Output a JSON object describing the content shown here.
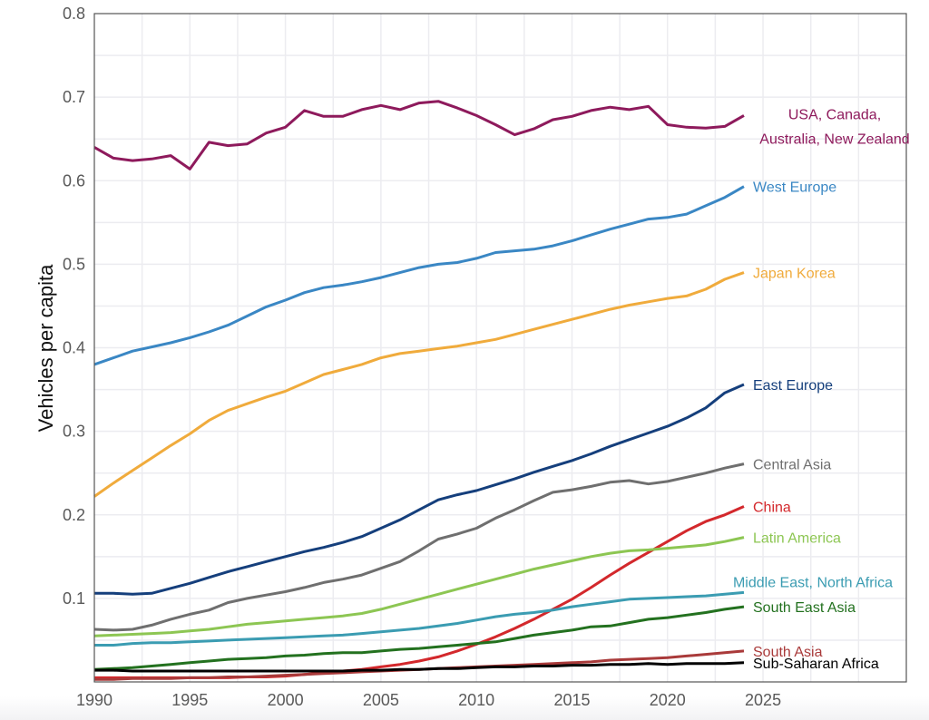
{
  "chart_data": {
    "type": "line",
    "title": "",
    "xlabel": "",
    "ylabel": "Vehicles per capita",
    "xlim": [
      1990,
      2032.5
    ],
    "ylim": [
      0,
      0.8
    ],
    "x_ticks": [
      "1990",
      "1995",
      "2000",
      "2005",
      "2010",
      "2015",
      "2020",
      "2025"
    ],
    "y_ticks": [
      "0.1",
      "0.2",
      "0.3",
      "0.4",
      "0.5",
      "0.6",
      "0.7",
      "0.8"
    ],
    "grid": true,
    "legend": "direct labels at right end of lines",
    "x": [
      1990,
      1991,
      1992,
      1993,
      1994,
      1995,
      1996,
      1997,
      1998,
      1999,
      2000,
      2001,
      2002,
      2003,
      2004,
      2005,
      2006,
      2007,
      2008,
      2009,
      2010,
      2011,
      2012,
      2013,
      2014,
      2015,
      2016,
      2017,
      2018,
      2019,
      2020,
      2021,
      2022,
      2023,
      2024
    ],
    "series": [
      {
        "name": "USA, Canada, Australia, New Zealand",
        "label_lines": [
          "USA, Canada,",
          "Australia, New Zealand"
        ],
        "color": "#8e1a5c",
        "values": [
          0.64,
          0.627,
          0.624,
          0.626,
          0.63,
          0.614,
          0.646,
          0.642,
          0.644,
          0.657,
          0.664,
          0.684,
          0.677,
          0.677,
          0.685,
          0.69,
          0.685,
          0.693,
          0.695,
          0.687,
          0.678,
          0.667,
          0.655,
          0.662,
          0.673,
          0.677,
          0.684,
          0.688,
          0.685,
          0.689,
          0.667,
          0.664,
          0.663,
          0.665,
          0.678
        ]
      },
      {
        "name": "West Europe",
        "label_lines": [
          "West Europe"
        ],
        "color": "#3a87c4",
        "values": [
          0.38,
          0.388,
          0.396,
          0.401,
          0.406,
          0.412,
          0.419,
          0.427,
          0.438,
          0.449,
          0.457,
          0.466,
          0.472,
          0.475,
          0.479,
          0.484,
          0.49,
          0.496,
          0.5,
          0.502,
          0.507,
          0.514,
          0.516,
          0.518,
          0.522,
          0.528,
          0.535,
          0.542,
          0.548,
          0.554,
          0.556,
          0.56,
          0.57,
          0.58,
          0.593
        ]
      },
      {
        "name": "Japan Korea",
        "label_lines": [
          "Japan Korea"
        ],
        "color": "#f0ab3c",
        "values": [
          0.222,
          0.238,
          0.253,
          0.268,
          0.283,
          0.297,
          0.313,
          0.325,
          0.333,
          0.341,
          0.348,
          0.358,
          0.368,
          0.374,
          0.38,
          0.388,
          0.393,
          0.396,
          0.399,
          0.402,
          0.406,
          0.41,
          0.416,
          0.422,
          0.428,
          0.434,
          0.44,
          0.446,
          0.451,
          0.455,
          0.459,
          0.462,
          0.47,
          0.482,
          0.49
        ]
      },
      {
        "name": "East Europe",
        "label_lines": [
          "East Europe"
        ],
        "color": "#153f7c",
        "values": [
          0.106,
          0.106,
          0.105,
          0.106,
          0.112,
          0.118,
          0.125,
          0.132,
          0.138,
          0.144,
          0.15,
          0.156,
          0.161,
          0.167,
          0.174,
          0.184,
          0.194,
          0.206,
          0.218,
          0.224,
          0.229,
          0.236,
          0.243,
          0.251,
          0.258,
          0.265,
          0.273,
          0.282,
          0.29,
          0.298,
          0.306,
          0.316,
          0.328,
          0.346,
          0.356
        ]
      },
      {
        "name": "Central Asia",
        "label_lines": [
          "Central Asia"
        ],
        "color": "#6f6f6f",
        "values": [
          0.063,
          0.062,
          0.063,
          0.068,
          0.075,
          0.081,
          0.086,
          0.095,
          0.1,
          0.104,
          0.108,
          0.113,
          0.119,
          0.123,
          0.128,
          0.136,
          0.144,
          0.157,
          0.171,
          0.177,
          0.184,
          0.196,
          0.206,
          0.217,
          0.227,
          0.23,
          0.234,
          0.239,
          0.241,
          0.237,
          0.24,
          0.245,
          0.25,
          0.256,
          0.261
        ]
      },
      {
        "name": "China",
        "label_lines": [
          "China"
        ],
        "color": "#d3282c",
        "values": [
          0.005,
          0.005,
          0.005,
          0.005,
          0.005,
          0.005,
          0.005,
          0.005,
          0.006,
          0.006,
          0.007,
          0.009,
          0.011,
          0.013,
          0.015,
          0.018,
          0.021,
          0.025,
          0.03,
          0.037,
          0.045,
          0.054,
          0.064,
          0.075,
          0.087,
          0.099,
          0.113,
          0.128,
          0.142,
          0.155,
          0.168,
          0.181,
          0.192,
          0.2,
          0.21
        ]
      },
      {
        "name": "Latin America",
        "label_lines": [
          "Latin America"
        ],
        "color": "#8dc653",
        "values": [
          0.055,
          0.056,
          0.057,
          0.058,
          0.059,
          0.061,
          0.063,
          0.066,
          0.069,
          0.071,
          0.073,
          0.075,
          0.077,
          0.079,
          0.082,
          0.087,
          0.093,
          0.099,
          0.105,
          0.111,
          0.117,
          0.123,
          0.129,
          0.135,
          0.14,
          0.145,
          0.15,
          0.154,
          0.157,
          0.158,
          0.16,
          0.162,
          0.164,
          0.168,
          0.173
        ]
      },
      {
        "name": "Middle East, North Africa",
        "label_lines": [
          "Middle East, North Africa"
        ],
        "color": "#3b9cb2",
        "values": [
          0.044,
          0.044,
          0.046,
          0.047,
          0.047,
          0.048,
          0.049,
          0.05,
          0.051,
          0.052,
          0.053,
          0.054,
          0.055,
          0.056,
          0.058,
          0.06,
          0.062,
          0.064,
          0.067,
          0.07,
          0.074,
          0.078,
          0.081,
          0.083,
          0.086,
          0.09,
          0.093,
          0.096,
          0.099,
          0.1,
          0.101,
          0.102,
          0.103,
          0.105,
          0.107
        ]
      },
      {
        "name": "South East Asia",
        "label_lines": [
          "South East Asia"
        ],
        "color": "#23711f",
        "values": [
          0.015,
          0.016,
          0.017,
          0.019,
          0.021,
          0.023,
          0.025,
          0.027,
          0.028,
          0.029,
          0.031,
          0.032,
          0.034,
          0.035,
          0.035,
          0.037,
          0.039,
          0.04,
          0.042,
          0.044,
          0.046,
          0.048,
          0.052,
          0.056,
          0.059,
          0.062,
          0.066,
          0.067,
          0.071,
          0.075,
          0.077,
          0.08,
          0.083,
          0.087,
          0.09
        ]
      },
      {
        "name": "South Asia",
        "label_lines": [
          "South Asia"
        ],
        "color": "#a93a3a",
        "values": [
          0.003,
          0.003,
          0.004,
          0.004,
          0.004,
          0.005,
          0.005,
          0.006,
          0.006,
          0.007,
          0.008,
          0.009,
          0.01,
          0.011,
          0.012,
          0.013,
          0.014,
          0.015,
          0.016,
          0.017,
          0.018,
          0.019,
          0.02,
          0.021,
          0.022,
          0.023,
          0.024,
          0.026,
          0.027,
          0.028,
          0.029,
          0.031,
          0.033,
          0.035,
          0.037
        ]
      },
      {
        "name": "Sub-Saharan Africa",
        "label_lines": [
          "Sub-Saharan Africa"
        ],
        "color": "#000000",
        "values": [
          0.014,
          0.014,
          0.013,
          0.013,
          0.013,
          0.013,
          0.013,
          0.013,
          0.013,
          0.013,
          0.013,
          0.013,
          0.013,
          0.013,
          0.014,
          0.014,
          0.015,
          0.015,
          0.016,
          0.016,
          0.017,
          0.018,
          0.018,
          0.019,
          0.019,
          0.02,
          0.02,
          0.021,
          0.021,
          0.022,
          0.021,
          0.022,
          0.022,
          0.022,
          0.023
        ]
      }
    ]
  }
}
